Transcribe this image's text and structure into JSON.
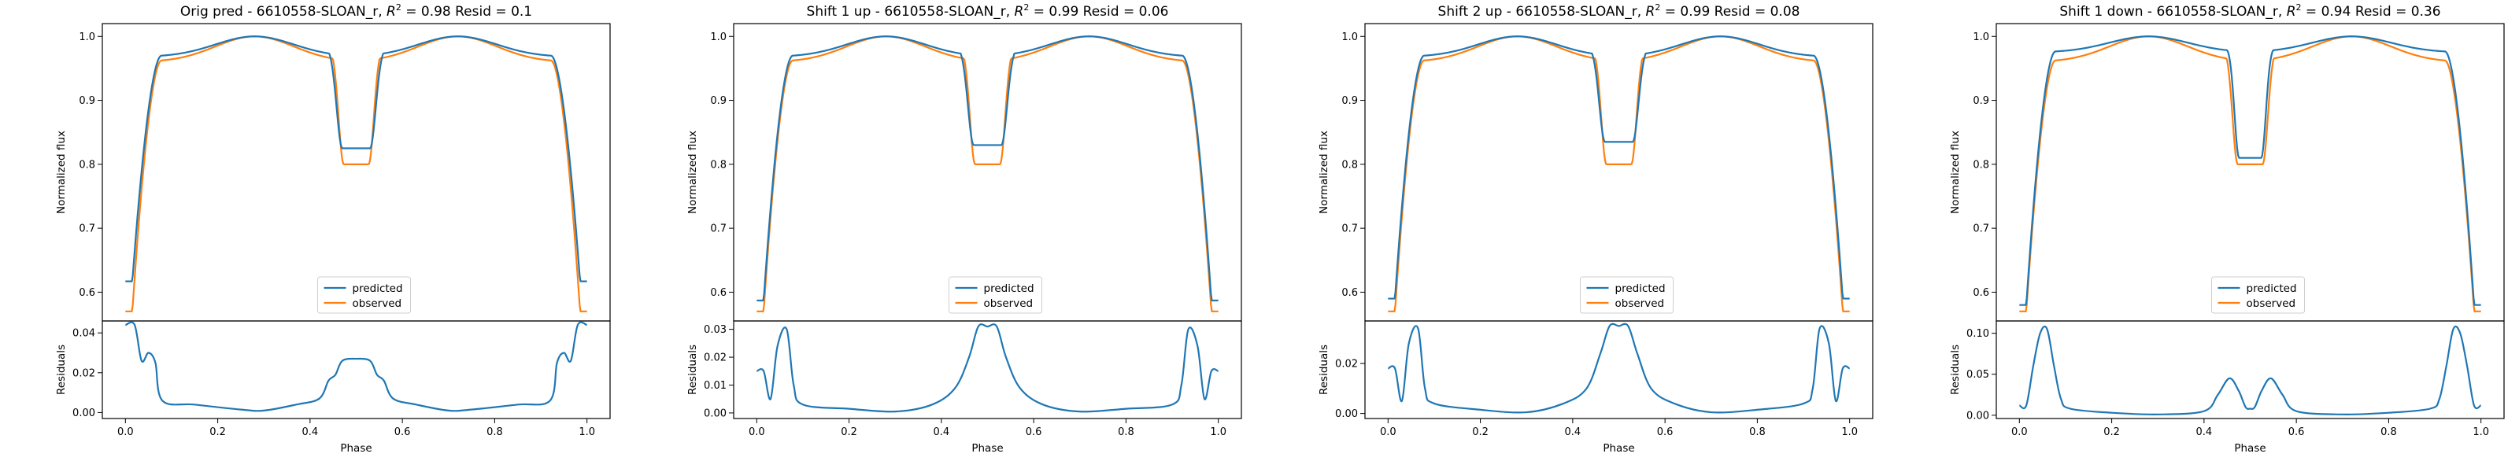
{
  "colors": {
    "predicted": "#1f77b4",
    "observed": "#ff7f0e"
  },
  "chart_data": [
    {
      "type": "line",
      "title": "Orig pred - 6610558-SLOAN_r, $R^2 = 0.98$ Resid = 0.1",
      "title_parts": {
        "prefix": "Orig pred - 6610558-SLOAN_r, ",
        "r2_label": "R",
        "r2_exp": "2",
        "suffix": " = 0.98 Resid = 0.1"
      },
      "xlabel": "Phase",
      "ylabel_top": "Normalized flux",
      "ylabel_bottom": "Residuals",
      "legend": [
        "predicted",
        "observed"
      ],
      "legend_position": "lower-center",
      "xlim": [
        -0.05,
        1.05
      ],
      "ylim_top": [
        0.555,
        1.02
      ],
      "ylim_bottom": [
        -0.003,
        0.046
      ],
      "x_ticks": [
        "0.0",
        "0.2",
        "0.4",
        "0.6",
        "0.8",
        "1.0"
      ],
      "y_ticks_top": [
        "0.6",
        "0.7",
        "0.8",
        "0.9",
        "1.0"
      ],
      "y_ticks_bottom": [
        "0.00",
        "0.02",
        "0.04"
      ],
      "predicted": {
        "base": 0.617,
        "edge": 0.968,
        "dip_min": 0.825,
        "dip_halfwidth": 0.05
      },
      "observed": {
        "base": 0.57,
        "edge": 0.96,
        "dip_min": 0.8,
        "dip_halfwidth": 0.045
      },
      "residuals": [
        [
          0,
          0.044
        ],
        [
          0.02,
          0.044
        ],
        [
          0.035,
          0.026
        ],
        [
          0.05,
          0.03
        ],
        [
          0.065,
          0.025
        ],
        [
          0.08,
          0.006
        ],
        [
          0.15,
          0.004
        ],
        [
          0.25,
          0.0015
        ],
        [
          0.3,
          0.001
        ],
        [
          0.37,
          0.004
        ],
        [
          0.42,
          0.007
        ],
        [
          0.44,
          0.016
        ],
        [
          0.455,
          0.019
        ],
        [
          0.47,
          0.026
        ],
        [
          0.5,
          0.027
        ],
        [
          0.53,
          0.026
        ],
        [
          0.545,
          0.019
        ],
        [
          0.56,
          0.016
        ],
        [
          0.58,
          0.007
        ],
        [
          0.63,
          0.004
        ],
        [
          0.7,
          0.001
        ],
        [
          0.75,
          0.0015
        ],
        [
          0.85,
          0.004
        ],
        [
          0.92,
          0.006
        ],
        [
          0.935,
          0.025
        ],
        [
          0.95,
          0.03
        ],
        [
          0.965,
          0.026
        ],
        [
          0.98,
          0.044
        ],
        [
          1.0,
          0.044
        ]
      ]
    },
    {
      "type": "line",
      "title": "Shift 1 up - 6610558-SLOAN_r, $R^2 = 0.99$ Resid = 0.06",
      "title_parts": {
        "prefix": "Shift 1 up - 6610558-SLOAN_r, ",
        "r2_label": "R",
        "r2_exp": "2",
        "suffix": " = 0.99 Resid = 0.06"
      },
      "xlabel": "Phase",
      "ylabel_top": "Normalized flux",
      "ylabel_bottom": "Residuals",
      "legend": [
        "predicted",
        "observed"
      ],
      "legend_position": "lower-center",
      "xlim": [
        -0.05,
        1.05
      ],
      "ylim_top": [
        0.555,
        1.02
      ],
      "ylim_bottom": [
        -0.002,
        0.033
      ],
      "x_ticks": [
        "0.0",
        "0.2",
        "0.4",
        "0.6",
        "0.8",
        "1.0"
      ],
      "y_ticks_top": [
        "0.6",
        "0.7",
        "0.8",
        "0.9",
        "1.0"
      ],
      "y_ticks_bottom": [
        "0.00",
        "0.01",
        "0.02",
        "0.03"
      ],
      "predicted": {
        "base": 0.587,
        "edge": 0.968,
        "dip_min": 0.83,
        "dip_halfwidth": 0.05
      },
      "observed": {
        "base": 0.57,
        "edge": 0.96,
        "dip_min": 0.8,
        "dip_halfwidth": 0.045
      },
      "residuals": [
        [
          0,
          0.015
        ],
        [
          0.015,
          0.015
        ],
        [
          0.03,
          0.005
        ],
        [
          0.045,
          0.024
        ],
        [
          0.065,
          0.03
        ],
        [
          0.08,
          0.01
        ],
        [
          0.1,
          0.003
        ],
        [
          0.2,
          0.0015
        ],
        [
          0.3,
          0.0005
        ],
        [
          0.38,
          0.003
        ],
        [
          0.43,
          0.009
        ],
        [
          0.46,
          0.02
        ],
        [
          0.48,
          0.031
        ],
        [
          0.5,
          0.031
        ],
        [
          0.52,
          0.031
        ],
        [
          0.54,
          0.02
        ],
        [
          0.57,
          0.009
        ],
        [
          0.62,
          0.003
        ],
        [
          0.7,
          0.0005
        ],
        [
          0.8,
          0.0015
        ],
        [
          0.9,
          0.003
        ],
        [
          0.92,
          0.01
        ],
        [
          0.935,
          0.03
        ],
        [
          0.955,
          0.024
        ],
        [
          0.97,
          0.005
        ],
        [
          0.985,
          0.015
        ],
        [
          1.0,
          0.015
        ]
      ]
    },
    {
      "type": "line",
      "title": "Shift 2 up - 6610558-SLOAN_r, $R^2 = 0.99$ Resid = 0.08",
      "title_parts": {
        "prefix": "Shift 2 up - 6610558-SLOAN_r, ",
        "r2_label": "R",
        "r2_exp": "2",
        "suffix": " = 0.99 Resid = 0.08"
      },
      "xlabel": "Phase",
      "ylabel_top": "Normalized flux",
      "ylabel_bottom": "Residuals",
      "legend": [
        "predicted",
        "observed"
      ],
      "legend_position": "lower-center",
      "xlim": [
        -0.05,
        1.05
      ],
      "ylim_top": [
        0.555,
        1.02
      ],
      "ylim_bottom": [
        -0.002,
        0.037
      ],
      "x_ticks": [
        "0.0",
        "0.2",
        "0.4",
        "0.6",
        "0.8",
        "1.0"
      ],
      "y_ticks_top": [
        "0.6",
        "0.7",
        "0.8",
        "0.9",
        "1.0"
      ],
      "y_ticks_bottom": [
        "0.00",
        "0.02"
      ],
      "predicted": {
        "base": 0.59,
        "edge": 0.968,
        "dip_min": 0.835,
        "dip_halfwidth": 0.05
      },
      "observed": {
        "base": 0.57,
        "edge": 0.96,
        "dip_min": 0.8,
        "dip_halfwidth": 0.045
      },
      "residuals": [
        [
          0,
          0.018
        ],
        [
          0.015,
          0.018
        ],
        [
          0.03,
          0.005
        ],
        [
          0.045,
          0.028
        ],
        [
          0.065,
          0.034
        ],
        [
          0.08,
          0.01
        ],
        [
          0.1,
          0.004
        ],
        [
          0.2,
          0.0015
        ],
        [
          0.3,
          0.0005
        ],
        [
          0.38,
          0.004
        ],
        [
          0.43,
          0.01
        ],
        [
          0.46,
          0.024
        ],
        [
          0.48,
          0.035
        ],
        [
          0.5,
          0.035
        ],
        [
          0.52,
          0.035
        ],
        [
          0.54,
          0.024
        ],
        [
          0.57,
          0.01
        ],
        [
          0.62,
          0.004
        ],
        [
          0.7,
          0.0005
        ],
        [
          0.8,
          0.0015
        ],
        [
          0.9,
          0.004
        ],
        [
          0.92,
          0.01
        ],
        [
          0.935,
          0.034
        ],
        [
          0.955,
          0.028
        ],
        [
          0.97,
          0.005
        ],
        [
          0.985,
          0.018
        ],
        [
          1.0,
          0.018
        ]
      ]
    },
    {
      "type": "line",
      "title": "Shift 1 down - 6610558-SLOAN_r, $R^2 = 0.94$ Resid = 0.36",
      "title_parts": {
        "prefix": "Shift 1 down - 6610558-SLOAN_r, ",
        "r2_label": "R",
        "r2_exp": "2",
        "suffix": " = 0.94 Resid = 0.36"
      },
      "xlabel": "Phase",
      "ylabel_top": "Normalized flux",
      "ylabel_bottom": "Residuals",
      "legend": [
        "predicted",
        "observed"
      ],
      "legend_position": "lower-center",
      "xlim": [
        -0.05,
        1.05
      ],
      "ylim_top": [
        0.555,
        1.02
      ],
      "ylim_bottom": [
        -0.004,
        0.115
      ],
      "x_ticks": [
        "0.0",
        "0.2",
        "0.4",
        "0.6",
        "0.8",
        "1.0"
      ],
      "y_ticks_top": [
        "0.6",
        "0.7",
        "0.8",
        "0.9",
        "1.0"
      ],
      "y_ticks_bottom": [
        "0.00",
        "0.05",
        "0.10"
      ],
      "predicted": {
        "base": 0.58,
        "edge": 0.975,
        "dip_min": 0.81,
        "dip_halfwidth": 0.04
      },
      "observed": {
        "base": 0.57,
        "edge": 0.96,
        "dip_min": 0.8,
        "dip_halfwidth": 0.045
      },
      "residuals": [
        [
          0,
          0.012
        ],
        [
          0.015,
          0.012
        ],
        [
          0.03,
          0.06
        ],
        [
          0.045,
          0.1
        ],
        [
          0.06,
          0.105
        ],
        [
          0.075,
          0.06
        ],
        [
          0.09,
          0.02
        ],
        [
          0.11,
          0.008
        ],
        [
          0.2,
          0.003
        ],
        [
          0.3,
          0.001
        ],
        [
          0.4,
          0.005
        ],
        [
          0.43,
          0.025
        ],
        [
          0.455,
          0.045
        ],
        [
          0.475,
          0.03
        ],
        [
          0.49,
          0.01
        ],
        [
          0.5,
          0.008
        ],
        [
          0.51,
          0.01
        ],
        [
          0.525,
          0.03
        ],
        [
          0.545,
          0.045
        ],
        [
          0.57,
          0.025
        ],
        [
          0.6,
          0.005
        ],
        [
          0.7,
          0.001
        ],
        [
          0.8,
          0.003
        ],
        [
          0.89,
          0.008
        ],
        [
          0.91,
          0.02
        ],
        [
          0.925,
          0.06
        ],
        [
          0.94,
          0.105
        ],
        [
          0.955,
          0.1
        ],
        [
          0.97,
          0.06
        ],
        [
          0.985,
          0.012
        ],
        [
          1.0,
          0.012
        ]
      ]
    }
  ]
}
